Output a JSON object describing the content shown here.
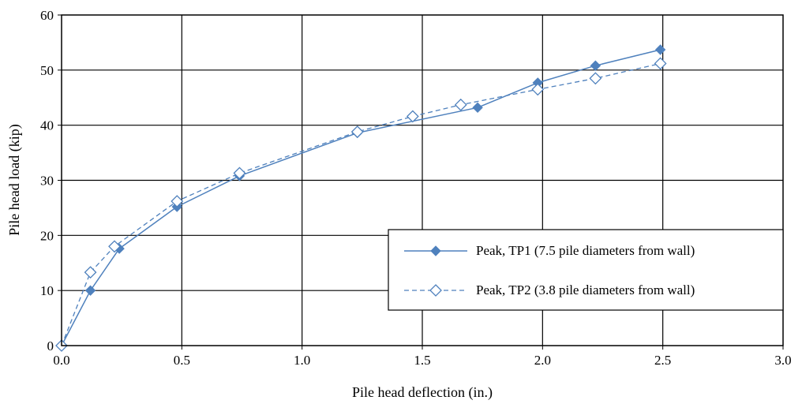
{
  "chart_data": {
    "type": "line",
    "title": "",
    "xlabel": "Pile head deflection (in.)",
    "ylabel": "Pile head load (kip)",
    "xlim": [
      0,
      3
    ],
    "ylim": [
      0,
      60
    ],
    "x_ticks": [
      "0.0",
      "0.5",
      "1.0",
      "1.5",
      "2.0",
      "2.5",
      "3.0"
    ],
    "y_ticks": [
      "0",
      "10",
      "20",
      "30",
      "40",
      "50",
      "60"
    ],
    "grid": true,
    "legend_position": "lower-right",
    "series": [
      {
        "name": "Peak, TP1 (7.5 pile diameters from wall)",
        "line_style": "solid",
        "marker": "filled-diamond",
        "color": "#4f81bd",
        "x": [
          0.0,
          0.12,
          0.24,
          0.48,
          0.74,
          1.23,
          1.73,
          1.98,
          2.22,
          2.49
        ],
        "y": [
          0,
          10,
          17.6,
          25.2,
          30.8,
          38.6,
          43.2,
          47.7,
          50.8,
          53.7
        ]
      },
      {
        "name": "Peak, TP2 (3.8 pile diameters from wall)",
        "line_style": "dashed",
        "marker": "open-diamond",
        "color": "#4f81bd",
        "x": [
          0.0,
          0.12,
          0.22,
          0.48,
          0.74,
          1.23,
          1.46,
          1.66,
          1.98,
          2.22,
          2.49
        ],
        "y": [
          0,
          13.3,
          18,
          26.2,
          31.3,
          38.8,
          41.6,
          43.7,
          46.5,
          48.5,
          51.2
        ]
      }
    ]
  }
}
